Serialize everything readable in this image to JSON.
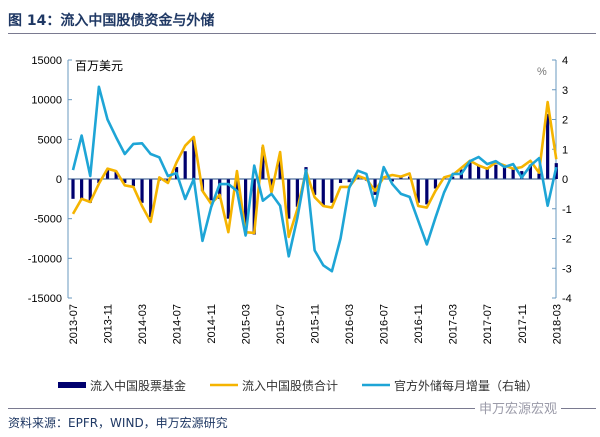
{
  "title": "图 14：流入中国股债资金与外储",
  "source": "资料来源：EPFR，WIND，申万宏源研究",
  "watermark": "申万宏源宏观",
  "chart_data": {
    "type": "bar+line",
    "left_unit": "百万美元",
    "right_unit": "%",
    "ylim_left": [
      -15000,
      15000
    ],
    "yticks_left": [
      "15000",
      "10000",
      "5000",
      "0",
      "-5000",
      "-10000",
      "-15000"
    ],
    "ylim_right": [
      -4,
      4
    ],
    "yticks_right": [
      "4",
      "3",
      "2",
      "1",
      "0",
      "-1",
      "-2",
      "-3",
      "-4"
    ],
    "x_tick_labels": [
      "2013-07",
      "2013-11",
      "2014-03",
      "2014-07",
      "2014-11",
      "2015-03",
      "2015-07",
      "2015-11",
      "2016-03",
      "2016-07",
      "2016-11",
      "2017-03",
      "2017-07",
      "2017-11",
      "2018-03"
    ],
    "x_start": "2013-07",
    "x_end": "2018-03",
    "legend_position": "bottom",
    "series": [
      {
        "name": "流入中国股票基金",
        "type": "bar",
        "axis": "left",
        "color": "#00006e",
        "values": [
          -2500,
          -2500,
          -3000,
          -500,
          1200,
          900,
          -500,
          -900,
          -3000,
          -4800,
          -200,
          -300,
          1500,
          3500,
          5000,
          -1500,
          -2700,
          -2500,
          -5000,
          -1500,
          -7000,
          -7000,
          4000,
          -1500,
          2500,
          -5000,
          -3500,
          1500,
          -2000,
          -3300,
          -3000,
          -500,
          -400,
          200,
          -200,
          -2000,
          0,
          -300,
          200,
          300,
          -3000,
          -3200,
          -1200,
          100,
          300,
          1200,
          2200,
          1700,
          1500,
          1800,
          1500,
          1200,
          1000,
          1800,
          700,
          8200,
          2000
        ]
      },
      {
        "name": "流入中国股债合计",
        "type": "line",
        "axis": "left",
        "color": "#f5b400",
        "values": [
          -4400,
          -2500,
          -2900,
          -600,
          1300,
          1000,
          -800,
          -1000,
          -3400,
          -5400,
          200,
          -500,
          2100,
          4200,
          5300,
          -1500,
          -3100,
          -2000,
          -6700,
          1000,
          -6700,
          -6800,
          4200,
          -1700,
          3400,
          -7300,
          -3800,
          1000,
          -2300,
          -3400,
          -3600,
          -1000,
          -1000,
          400,
          0,
          -1500,
          200,
          500,
          300,
          700,
          -3400,
          -3600,
          -1500,
          200,
          500,
          1400,
          2300,
          1700,
          1300,
          2100,
          1700,
          1300,
          1500,
          2300,
          800,
          9700,
          2500
        ]
      },
      {
        "name": "官方外储每月增量（右轴）",
        "type": "line",
        "axis": "right",
        "color": "#1ea5d6",
        "values": [
          0.3,
          1.46,
          0.1,
          3.1,
          2.0,
          1.4,
          0.84,
          1.18,
          1.2,
          0.84,
          0.73,
          0.1,
          0.2,
          -0.67,
          0,
          -2.08,
          -0.95,
          -0.17,
          -0.17,
          -0.4,
          -1.9,
          0.45,
          -0.73,
          -0.5,
          -0.9,
          -2.6,
          -1.3,
          0.3,
          -2.4,
          -2.9,
          -3.1,
          -2.0,
          -0.3,
          0.28,
          0.17,
          -0.9,
          0.4,
          -0.17,
          -0.5,
          -0.6,
          -1.4,
          -2.2,
          -1.3,
          -0.45,
          0.17,
          0.17,
          0.6,
          0.74,
          0.5,
          0.6,
          0.4,
          0.5,
          0.05,
          0.45,
          0.7,
          -0.9,
          0.4
        ]
      }
    ]
  }
}
